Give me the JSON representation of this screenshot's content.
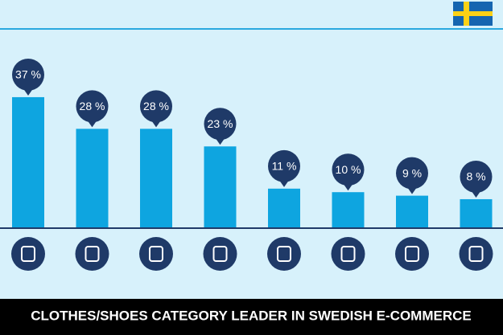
{
  "chart_data": {
    "type": "bar",
    "title": "CLOTHES/SHOES CATEGORY LEADER IN SWEDISH E-COMMERCE",
    "categories": [
      null,
      null,
      null,
      null,
      null,
      null,
      null,
      null
    ],
    "values": [
      37,
      28,
      28,
      23,
      11,
      10,
      9,
      8
    ],
    "value_labels": [
      "37 %",
      "28 %",
      "28 %",
      "23 %",
      "11 %",
      "10 %",
      "9 %",
      "8 %"
    ],
    "color": "#0ea5e0"
  }
}
